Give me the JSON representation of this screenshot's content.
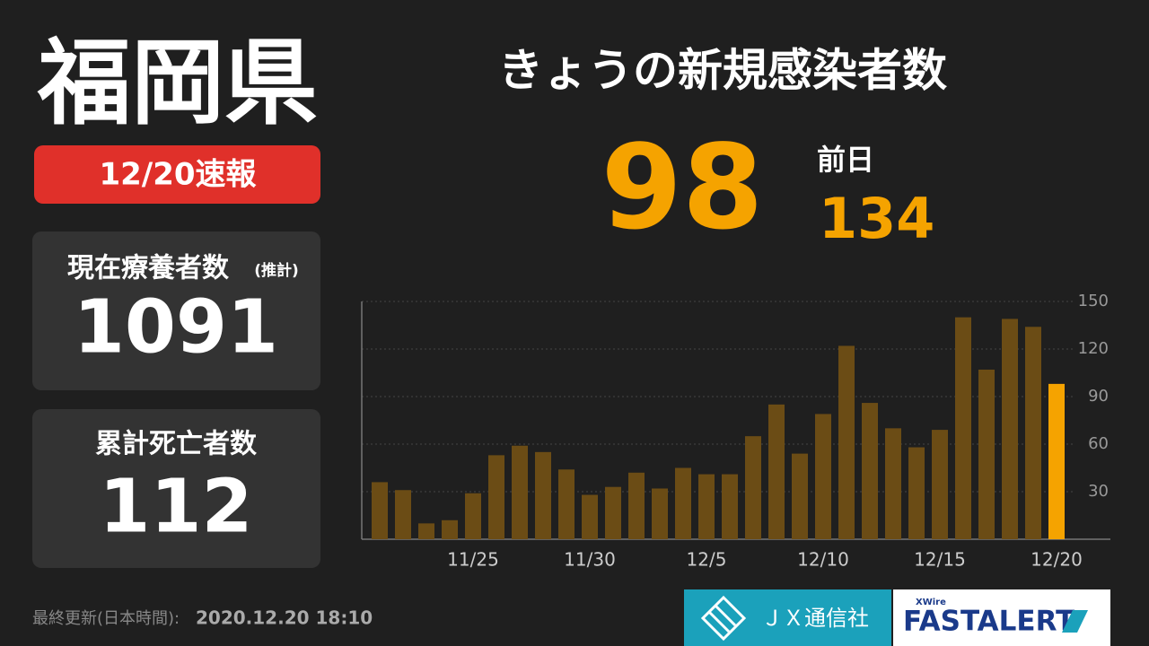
{
  "prefecture": "福岡県",
  "date_badge": "12/20速報",
  "headline": "きょうの新規感染者数",
  "today_count": 98,
  "previous_label": "前日",
  "previous_count": 134,
  "active_cases_label": "現在療養者数",
  "active_cases_note": "(推計)",
  "active_cases": 1091,
  "deaths_label": "累計死亡者数",
  "deaths": 112,
  "updated_label": "最終更新(日本時間):",
  "updated_value": "2020.12.20 18:10",
  "logos": {
    "jx": "ＪＸ通信社",
    "xwire": "XWire",
    "fastalert": "FASTALERT"
  },
  "chart_data": {
    "type": "bar",
    "categories": [
      null,
      null,
      null,
      null,
      "11/25",
      null,
      null,
      null,
      null,
      "11/30",
      null,
      null,
      null,
      null,
      "12/5",
      null,
      null,
      null,
      null,
      "12/10",
      null,
      null,
      null,
      null,
      "12/15",
      null,
      null,
      null,
      null,
      "12/20"
    ],
    "values": [
      36,
      31,
      10,
      12,
      29,
      53,
      59,
      55,
      44,
      28,
      33,
      42,
      32,
      45,
      41,
      41,
      65,
      85,
      54,
      79,
      122,
      86,
      70,
      58,
      69,
      140,
      107,
      139,
      134,
      98
    ],
    "colors": [
      "#6b4c15",
      "#6b4c15",
      "#6b4c15",
      "#6b4c15",
      "#6b4c15",
      "#6b4c15",
      "#6b4c15",
      "#6b4c15",
      "#6b4c15",
      "#6b4c15",
      "#6b4c15",
      "#6b4c15",
      "#6b4c15",
      "#6b4c15",
      "#6b4c15",
      "#6b4c15",
      "#6b4c15",
      "#6b4c15",
      "#6b4c15",
      "#6b4c15",
      "#6b4c15",
      "#6b4c15",
      "#6b4c15",
      "#6b4c15",
      "#6b4c15",
      "#6b4c15",
      "#6b4c15",
      "#6b4c15",
      "#6b4c15",
      "#f5a300"
    ],
    "ylim": [
      0,
      150
    ],
    "yticks": [
      30,
      60,
      90,
      120,
      150
    ],
    "grid": true
  }
}
